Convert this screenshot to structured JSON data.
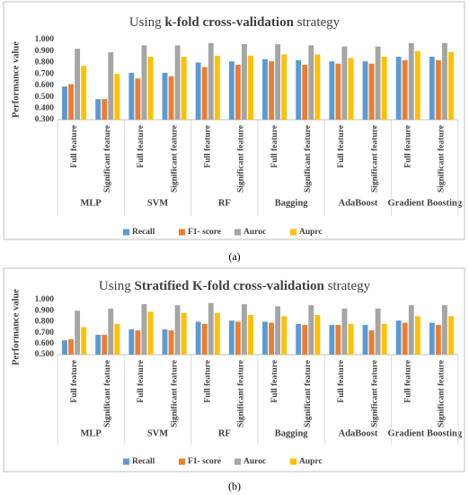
{
  "chart_data": [
    {
      "type": "bar",
      "title_parts": [
        {
          "text": "Using "
        },
        {
          "text": "k-fold cross-validation",
          "bold": true
        },
        {
          "text": " strategy"
        }
      ],
      "y_label": "Performance value",
      "categories": [
        "Full feature",
        "Significant feature",
        "Full feature",
        "Significant feature",
        "Full feature",
        "Significant feature",
        "Full feature",
        "Significant feature",
        "Full feature",
        "Significant feature",
        "Full feature",
        "Significant feature"
      ],
      "groups": [
        "MLP",
        "SVM",
        "RF",
        "Bagging",
        "AdaBoost",
        "Gradient Boosting"
      ],
      "series": [
        {
          "name": "Recall",
          "color": "#5b9bd5",
          "values": [
            0.59,
            0.48,
            0.71,
            0.71,
            0.8,
            0.81,
            0.83,
            0.82,
            0.81,
            0.81,
            0.85,
            0.85
          ]
        },
        {
          "name": "F1- score",
          "color": "#ed7d31",
          "values": [
            0.61,
            0.48,
            0.66,
            0.68,
            0.76,
            0.78,
            0.81,
            0.78,
            0.79,
            0.79,
            0.82,
            0.82
          ]
        },
        {
          "name": "Auroc",
          "color": "#a5a5a5",
          "values": [
            0.92,
            0.89,
            0.95,
            0.95,
            0.97,
            0.96,
            0.96,
            0.95,
            0.94,
            0.94,
            0.97,
            0.97
          ]
        },
        {
          "name": "Auprc",
          "color": "#ffc000",
          "values": [
            0.77,
            0.7,
            0.85,
            0.85,
            0.86,
            0.86,
            0.87,
            0.87,
            0.84,
            0.85,
            0.9,
            0.89
          ]
        }
      ],
      "ylim": [
        0.3,
        1.0
      ],
      "yticks": [
        {
          "value": 0.3,
          "label": "0.300"
        },
        {
          "value": 0.4,
          "label": "0.400"
        },
        {
          "value": 0.5,
          "label": "0.500"
        },
        {
          "value": 0.6,
          "label": "0.600"
        },
        {
          "value": 0.7,
          "label": "0.700"
        },
        {
          "value": 0.8,
          "label": "0.800"
        },
        {
          "value": 0.9,
          "label": "0.900"
        },
        {
          "value": 1.0,
          "label": "1.000"
        }
      ],
      "grid": false,
      "caption": "(a)"
    },
    {
      "type": "bar",
      "title_parts": [
        {
          "text": "Using "
        },
        {
          "text": "Stratified K-fold cross-validation",
          "bold": true
        },
        {
          "text": " strategy"
        }
      ],
      "y_label": "Performance value",
      "categories": [
        "Full feature",
        "Significant feature",
        "Full feature",
        "Significant feature",
        "Full feature",
        "Significant feature",
        "Full feature",
        "Significant feature",
        "Full feature",
        "Significant feature",
        "Full feature",
        "Significant feature"
      ],
      "groups": [
        "MLP",
        "SVM",
        "RF",
        "Bagging",
        "AdaBoost",
        "Gradient Boosting"
      ],
      "series": [
        {
          "name": "Recall",
          "color": "#5b9bd5",
          "values": [
            0.63,
            0.68,
            0.73,
            0.73,
            0.8,
            0.81,
            0.8,
            0.78,
            0.77,
            0.77,
            0.81,
            0.79
          ]
        },
        {
          "name": "F1- score",
          "color": "#ed7d31",
          "values": [
            0.64,
            0.68,
            0.72,
            0.72,
            0.78,
            0.8,
            0.79,
            0.77,
            0.77,
            0.72,
            0.79,
            0.77
          ]
        },
        {
          "name": "Auroc",
          "color": "#a5a5a5",
          "values": [
            0.9,
            0.92,
            0.96,
            0.95,
            0.97,
            0.96,
            0.94,
            0.95,
            0.92,
            0.92,
            0.95,
            0.95
          ]
        },
        {
          "name": "Auprc",
          "color": "#ffc000",
          "values": [
            0.75,
            0.78,
            0.89,
            0.88,
            0.88,
            0.86,
            0.85,
            0.86,
            0.78,
            0.78,
            0.85,
            0.85
          ]
        }
      ],
      "ylim": [
        0.5,
        1.0
      ],
      "yticks": [
        {
          "value": 0.5,
          "label": "0.500"
        },
        {
          "value": 0.6,
          "label": "0.600"
        },
        {
          "value": 0.7,
          "label": "0.700"
        },
        {
          "value": 0.8,
          "label": "0.800"
        },
        {
          "value": 0.9,
          "label": "0.900"
        },
        {
          "value": 1.0,
          "label": "1.000"
        }
      ],
      "grid": false,
      "caption": "(b)"
    }
  ]
}
